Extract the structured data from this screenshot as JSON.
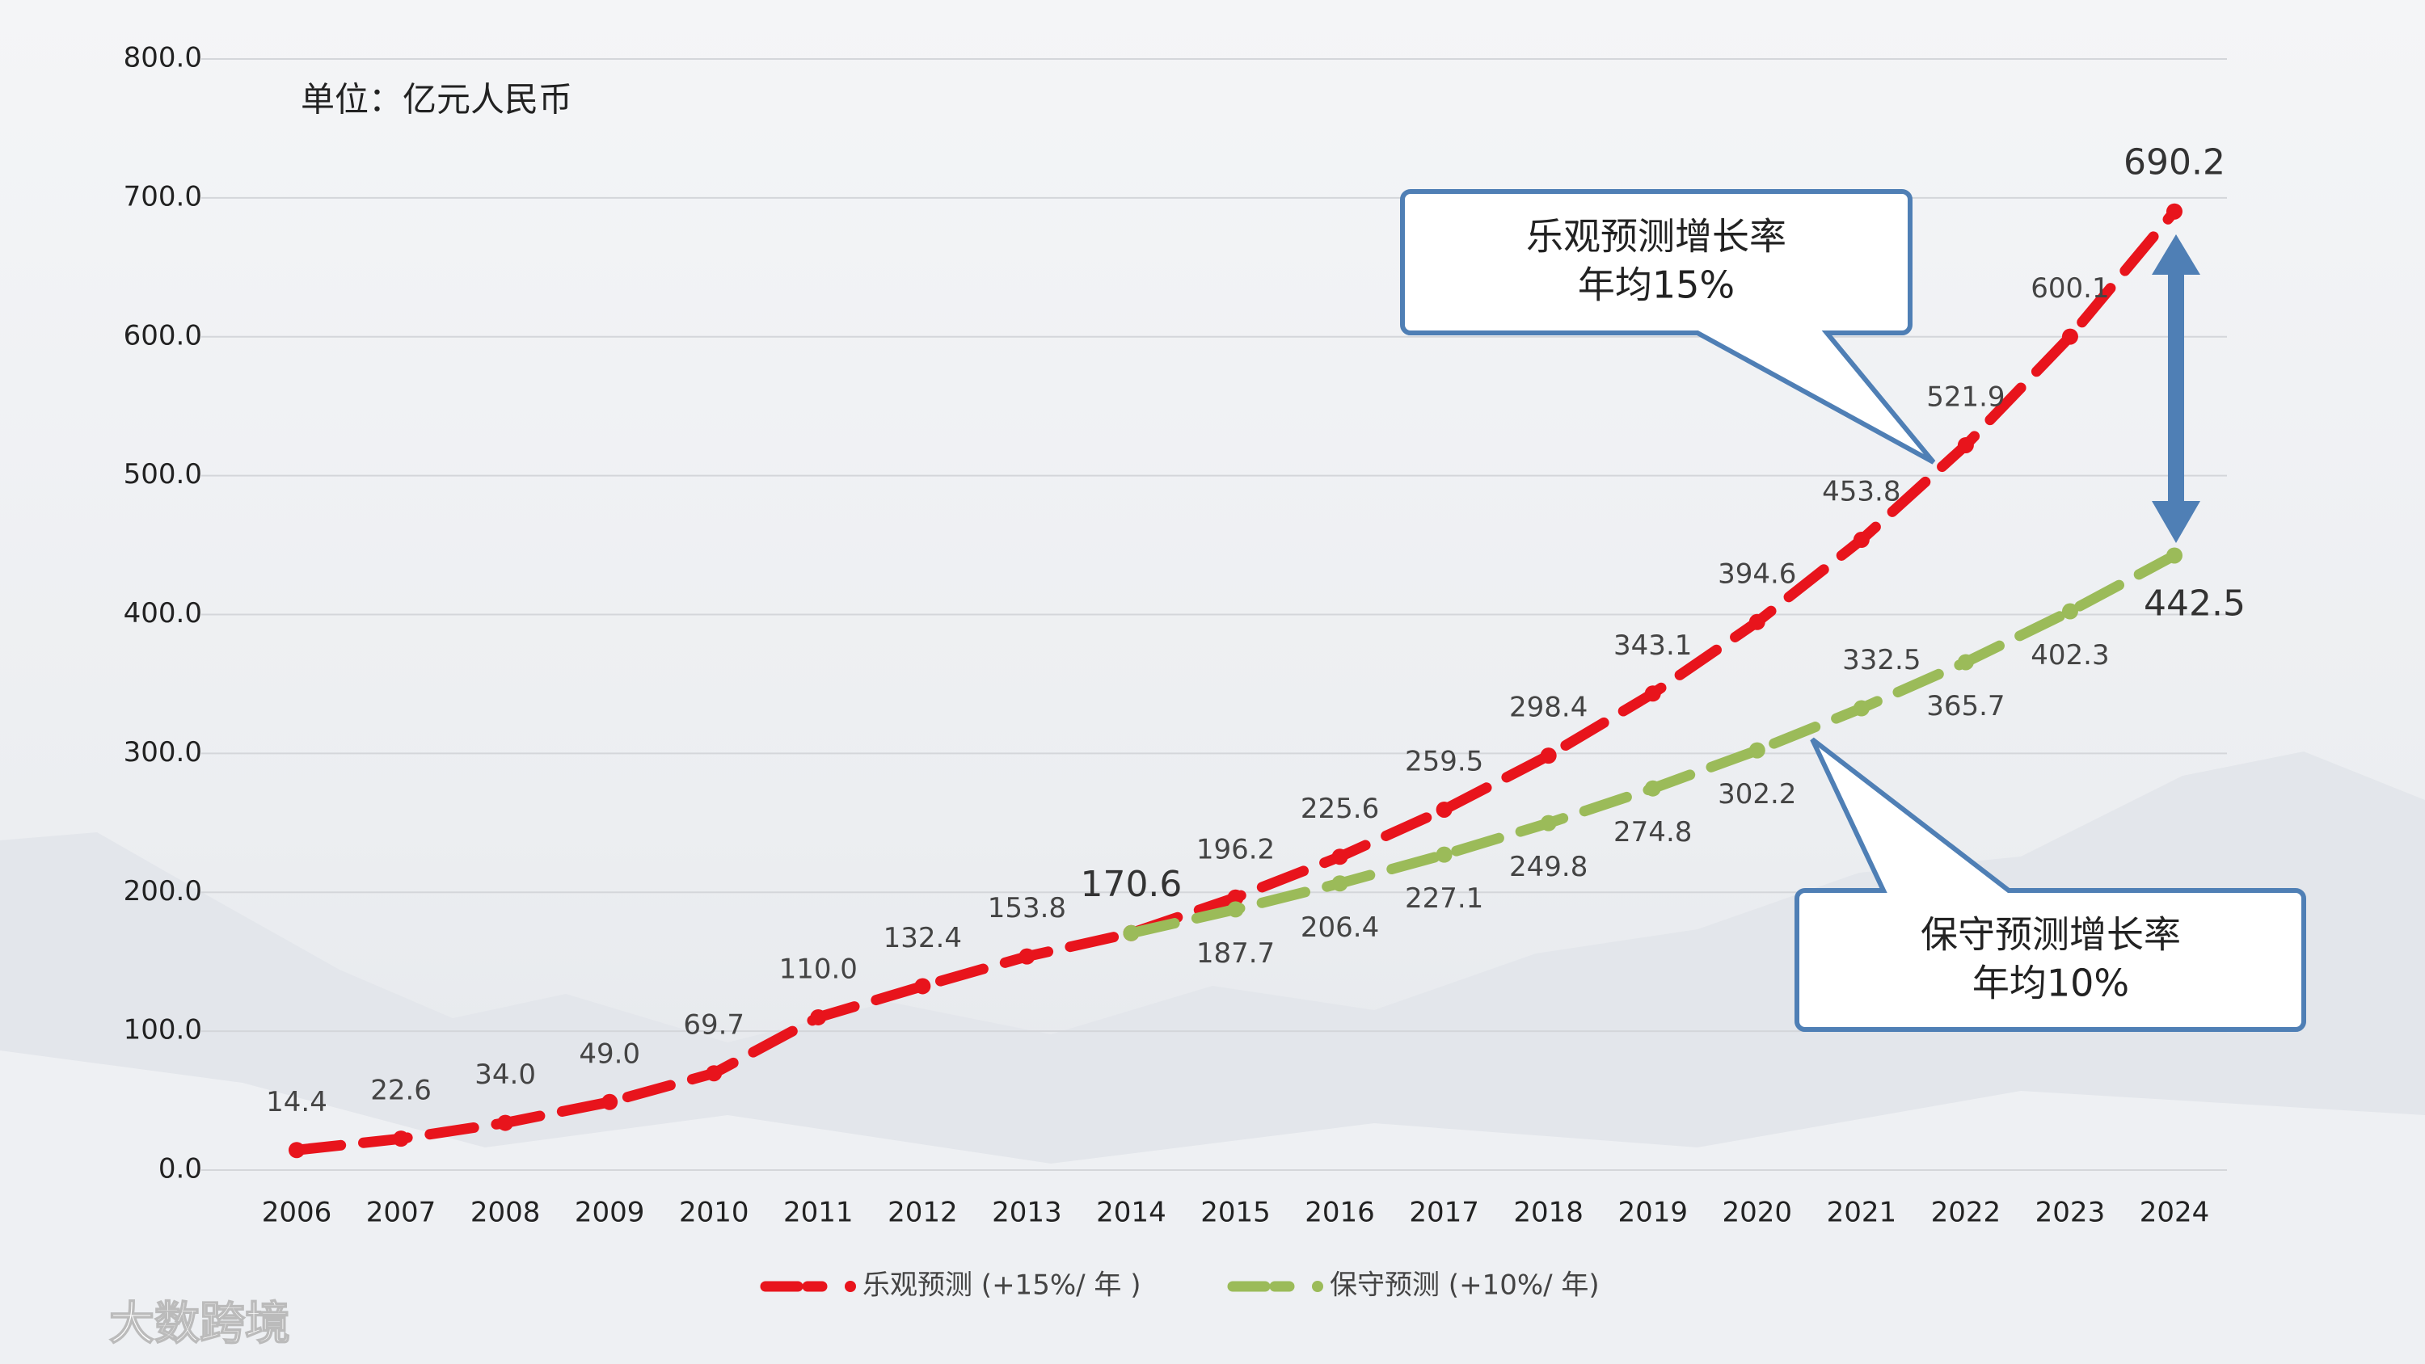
{
  "chart_data": {
    "type": "line",
    "unit_label": "单位：亿元人民币",
    "categories": [
      "2006",
      "2007",
      "2008",
      "2009",
      "2010",
      "2011",
      "2012",
      "2013",
      "2014",
      "2015",
      "2016",
      "2017",
      "2018",
      "2019",
      "2020",
      "2021",
      "2022",
      "2023",
      "2024"
    ],
    "series": [
      {
        "name": "乐观预测 (+15%/ 年 )",
        "color": "#e8141c",
        "values": [
          14.4,
          22.6,
          34.0,
          49.0,
          69.7,
          110.0,
          132.4,
          153.8,
          170.6,
          196.2,
          225.6,
          259.5,
          298.4,
          343.1,
          394.6,
          453.8,
          521.9,
          600.1,
          690.2
        ],
        "value_labels": [
          "14.4",
          "22.6",
          "34.0",
          "49.0",
          "69.7",
          "110.0",
          "132.4",
          "153.8",
          "170.6",
          "196.2",
          "225.6",
          "259.5",
          "298.4",
          "343.1",
          "394.6",
          "453.8",
          "521.9",
          "600.1",
          "690.2"
        ]
      },
      {
        "name": "保守预测 (+10%/ 年)",
        "color": "#9bbb59",
        "values": [
          null,
          null,
          null,
          null,
          null,
          null,
          null,
          null,
          170.6,
          187.7,
          206.4,
          227.1,
          249.8,
          274.8,
          302.2,
          332.5,
          365.7,
          402.3,
          442.5
        ],
        "value_labels": [
          null,
          null,
          null,
          null,
          null,
          null,
          null,
          null,
          null,
          "187.7",
          "206.4",
          "227.1",
          "249.8",
          "274.8",
          "302.2",
          "332.5",
          "365.7",
          "402.3",
          "442.5"
        ]
      }
    ],
    "ylim": [
      0,
      800
    ],
    "yticks": [
      {
        "value": 0,
        "label": "0.0"
      },
      {
        "value": 100,
        "label": "100.0"
      },
      {
        "value": 200,
        "label": "200.0"
      },
      {
        "value": 300,
        "label": "300.0"
      },
      {
        "value": 400,
        "label": "400.0"
      },
      {
        "value": 500,
        "label": "500.0"
      },
      {
        "value": 600,
        "label": "600.0"
      },
      {
        "value": 700,
        "label": "700.0"
      },
      {
        "value": 800,
        "label": "800.0"
      }
    ],
    "grid": true,
    "legend": "bottom",
    "callouts": [
      {
        "lines": [
          "乐观预测增长率",
          "年均15%"
        ]
      },
      {
        "lines": [
          "保守预测增长率",
          "年均10%"
        ]
      }
    ],
    "watermark": "大数跨境"
  }
}
